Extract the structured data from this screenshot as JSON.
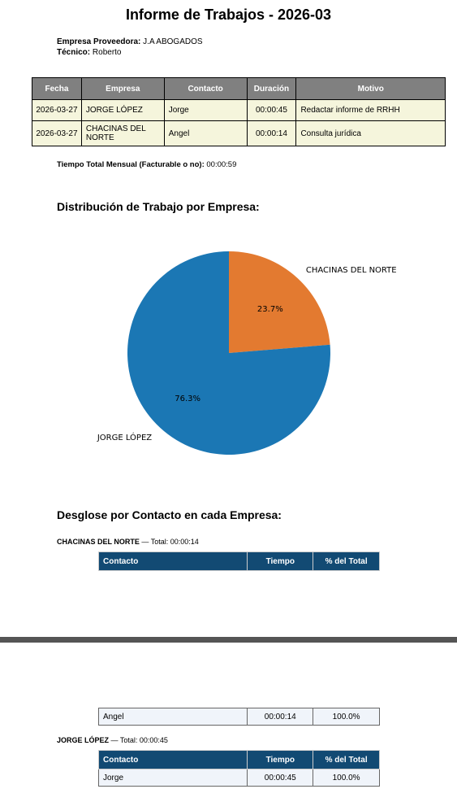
{
  "title": "Informe de Trabajos - 2026-03",
  "provider_label": "Empresa Proveedora:",
  "provider_value": "J.A ABOGADOS",
  "tech_label": "Técnico:",
  "tech_value": "Roberto",
  "main_table": {
    "headers": [
      "Fecha",
      "Empresa",
      "Contacto",
      "Duración",
      "Motivo"
    ],
    "rows": [
      [
        "2026-03-27",
        "JORGE LÓPEZ",
        "Jorge",
        "00:00:45",
        "Redactar informe de RRHH"
      ],
      [
        "2026-03-27",
        "CHACINAS DEL NORTE",
        "Angel",
        "00:00:14",
        "Consulta jurídica"
      ]
    ]
  },
  "total_label": "Tiempo Total Mensual (Facturable o no):",
  "total_value": "00:00:59",
  "distribution_title": "Distribución de Trabajo por Empresa:",
  "chart_data": {
    "type": "pie",
    "title": "",
    "labels": [
      "CHACINAS DEL NORTE",
      "JORGE LÓPEZ"
    ],
    "values": [
      23.7,
      76.3
    ],
    "value_labels": [
      "23.7%",
      "76.3%"
    ],
    "colors": [
      "#e37a30",
      "#1b77b4"
    ]
  },
  "breakdown_title": "Desglose por Contacto en cada Empresa:",
  "groups": [
    {
      "company": "CHACINAS DEL NORTE",
      "total_text": "— Total: 00:00:14",
      "headers": [
        "Contacto",
        "Tiempo",
        "% del Total"
      ],
      "rows": [
        [
          "Angel",
          "00:00:14",
          "100.0%"
        ]
      ]
    },
    {
      "company": "JORGE LÓPEZ",
      "total_text": "— Total: 00:00:45",
      "headers": [
        "Contacto",
        "Tiempo",
        "% del Total"
      ],
      "rows": [
        [
          "Jorge",
          "00:00:45",
          "100.0%"
        ]
      ]
    }
  ]
}
